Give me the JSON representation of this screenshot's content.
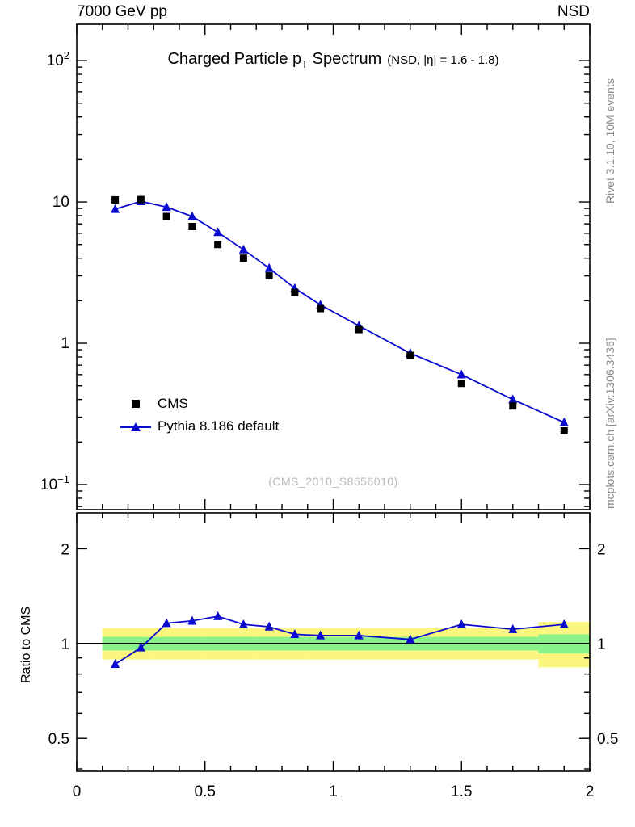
{
  "header": {
    "left": "7000 GeV pp",
    "right": "NSD"
  },
  "title": {
    "pre": "Charged Particle p",
    "sub": "T",
    "post": " Spectrum",
    "condition": "(NSD, |η| = 1.6 - 1.8)"
  },
  "watermark": "(CMS_2010_S8656010)",
  "side_labels": {
    "right_top": "Rivet 3.1.10,  10M events",
    "right_bottom": "mcplots.cern.ch [arXiv:1306.3436]",
    "ratio_axis": "Ratio to CMS"
  },
  "legend": [
    {
      "label": "CMS",
      "marker": "black-square"
    },
    {
      "label": "Pythia 8.186 default",
      "marker": "blue-line-triangle"
    }
  ],
  "colors": {
    "cms": "#000000",
    "pythia": "#0b0bd0",
    "band_yellow": "#fbf67e",
    "band_green": "#8af28a",
    "unity_line": "#000000",
    "watermark": "#b9b9b9",
    "side_text": "#8c8c8c"
  },
  "chart_data": {
    "type": "line",
    "title": "Charged Particle pT Spectrum",
    "subtitle": "(NSD, |η| = 1.6 - 1.8)",
    "xlabel": "",
    "ylabel": "",
    "x": [
      0.15,
      0.25,
      0.35,
      0.45,
      0.55,
      0.65,
      0.75,
      0.85,
      0.95,
      1.1,
      1.3,
      1.5,
      1.7,
      1.9
    ],
    "bin_edges": [
      0.1,
      0.2,
      0.3,
      0.4,
      0.5,
      0.6,
      0.7,
      0.8,
      0.9,
      1.0,
      1.2,
      1.4,
      1.6,
      1.8,
      2.0
    ],
    "series": [
      {
        "name": "CMS",
        "marker": "square",
        "color": "#000000",
        "values": [
          10.35,
          10.4,
          7.9,
          6.7,
          5.0,
          4.0,
          3.0,
          2.29,
          1.76,
          1.25,
          0.82,
          0.52,
          0.36,
          0.24
        ]
      },
      {
        "name": "Pythia 8.186 default",
        "marker": "triangle",
        "color": "#0b0bd0",
        "values": [
          8.9,
          10.1,
          9.2,
          7.9,
          6.1,
          4.6,
          3.4,
          2.45,
          1.87,
          1.33,
          0.85,
          0.6,
          0.4,
          0.275
        ]
      }
    ],
    "ratio": {
      "label": "Ratio to CMS",
      "values": [
        0.86,
        0.97,
        1.16,
        1.18,
        1.22,
        1.15,
        1.13,
        1.07,
        1.06,
        1.06,
        1.03,
        1.15,
        1.11,
        1.15
      ],
      "band_yellow_lo": [
        0.89,
        0.89,
        0.89,
        0.89,
        0.89,
        0.89,
        0.89,
        0.89,
        0.89,
        0.89,
        0.89,
        0.89,
        0.89,
        0.84
      ],
      "band_yellow_hi": [
        1.12,
        1.12,
        1.12,
        1.12,
        1.12,
        1.12,
        1.12,
        1.12,
        1.12,
        1.12,
        1.12,
        1.12,
        1.12,
        1.17
      ],
      "band_green_lo": [
        0.95,
        0.95,
        0.95,
        0.95,
        0.95,
        0.95,
        0.95,
        0.95,
        0.95,
        0.95,
        0.95,
        0.95,
        0.95,
        0.93
      ],
      "band_green_hi": [
        1.05,
        1.05,
        1.05,
        1.05,
        1.05,
        1.05,
        1.05,
        1.05,
        1.05,
        1.05,
        1.05,
        1.05,
        1.05,
        1.07
      ]
    },
    "x_axis": {
      "min": 0,
      "max": 2,
      "major_ticks": [
        0,
        0.5,
        1,
        1.5,
        2
      ],
      "labels": [
        "0",
        "0.5",
        "1",
        "1.5",
        "2"
      ],
      "minor_step": 0.1
    },
    "y_axis_main": {
      "scale": "log",
      "min": 0.0665,
      "max": 181,
      "decades": [
        -1,
        0,
        1,
        2
      ],
      "grid": false
    },
    "y_axis_ratio": {
      "scale": "log",
      "min": 0.393,
      "max": 2.6,
      "major_ticks": [
        0.5,
        1,
        2
      ],
      "labels": [
        "0.5",
        "1",
        "2"
      ],
      "minor_ticks": [
        0.4,
        0.6,
        0.7,
        0.8,
        0.9
      ]
    },
    "legend_position": "center-left"
  }
}
